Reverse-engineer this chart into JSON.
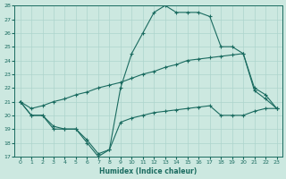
{
  "xlabel": "Humidex (Indice chaleur)",
  "background_color": "#cce8e0",
  "grid_color": "#add4cc",
  "line_color": "#1a6b60",
  "xlim": [
    -0.5,
    23.5
  ],
  "ylim": [
    17,
    28
  ],
  "xticks": [
    0,
    1,
    2,
    3,
    4,
    5,
    6,
    7,
    8,
    9,
    10,
    11,
    12,
    13,
    14,
    15,
    16,
    17,
    18,
    19,
    20,
    21,
    22,
    23
  ],
  "yticks": [
    17,
    18,
    19,
    20,
    21,
    22,
    23,
    24,
    25,
    26,
    27,
    28
  ],
  "line1_x": [
    0,
    1,
    2,
    3,
    4,
    5,
    6,
    7,
    8,
    9,
    10,
    11,
    12,
    13,
    14,
    15,
    16,
    17,
    18,
    19,
    20,
    21,
    22,
    23
  ],
  "line1_y": [
    21.0,
    20.0,
    20.0,
    19.0,
    19.0,
    19.0,
    18.0,
    17.0,
    17.5,
    19.5,
    19.8,
    20.0,
    20.2,
    20.3,
    20.4,
    20.5,
    20.6,
    20.7,
    20.0,
    20.0,
    20.0,
    20.3,
    20.5,
    20.5
  ],
  "line2_x": [
    0,
    1,
    2,
    3,
    4,
    5,
    6,
    7,
    8,
    9,
    10,
    11,
    12,
    13,
    14,
    15,
    16,
    17,
    18,
    19,
    20,
    21,
    22,
    23
  ],
  "line2_y": [
    21.0,
    20.5,
    20.7,
    21.0,
    21.2,
    21.5,
    21.7,
    22.0,
    22.2,
    22.4,
    22.7,
    23.0,
    23.2,
    23.5,
    23.7,
    24.0,
    24.1,
    24.2,
    24.3,
    24.4,
    24.5,
    22.0,
    21.5,
    20.5
  ],
  "line3_x": [
    0,
    1,
    2,
    3,
    4,
    5,
    6,
    7,
    8,
    9,
    10,
    11,
    12,
    13,
    14,
    15,
    16,
    17,
    18,
    19,
    20,
    21,
    22,
    23
  ],
  "line3_y": [
    21.0,
    20.0,
    20.0,
    19.2,
    19.0,
    19.0,
    18.2,
    17.2,
    17.5,
    22.0,
    24.5,
    26.0,
    27.5,
    28.0,
    27.5,
    27.5,
    27.5,
    27.2,
    25.0,
    25.0,
    24.5,
    21.8,
    21.2,
    20.5
  ]
}
